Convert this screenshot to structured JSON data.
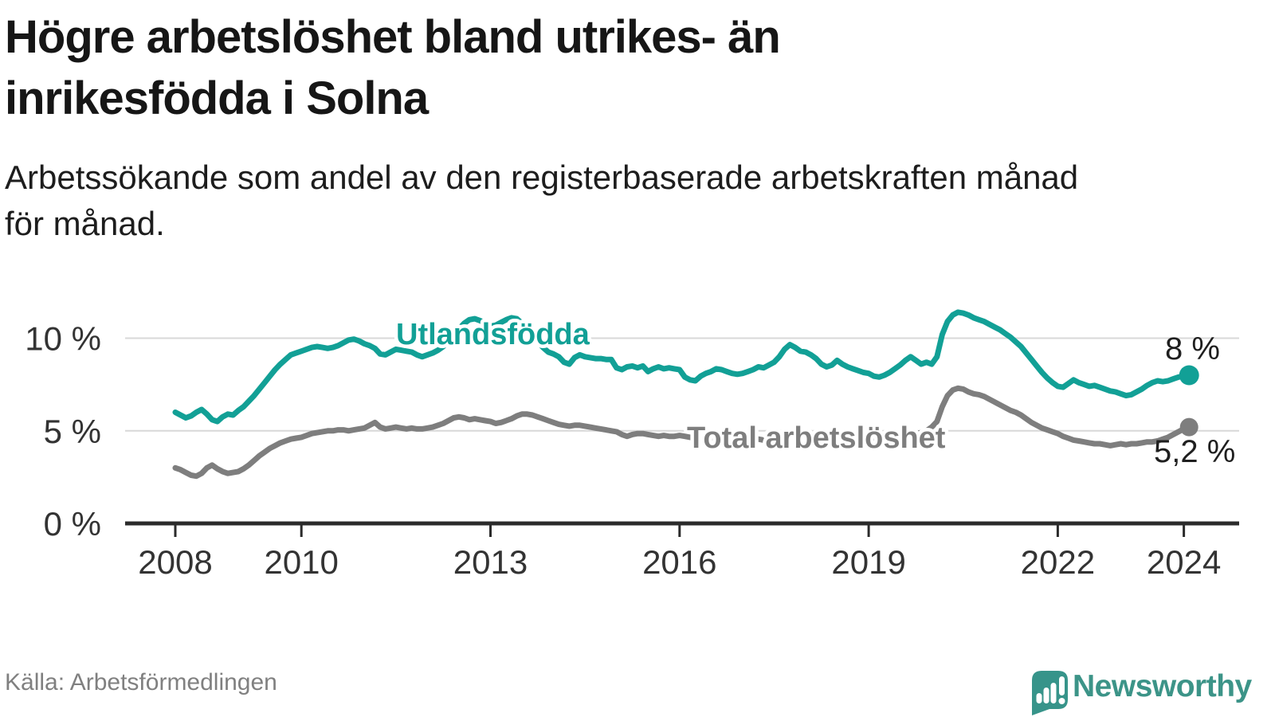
{
  "header": {
    "title_line1": "Högre arbetslöshet bland utrikes- än",
    "title_line2": "inrikesfödda i Solna",
    "subtitle_line1": "Arbetssökande som andel av den registerbaserade arbetskraften månad",
    "subtitle_line2": "för månad."
  },
  "footer": {
    "source": "Källa: Arbetsförmedlingen",
    "brand": "Newsworthy"
  },
  "colors": {
    "accent_teal": "#12a096",
    "series_gray": "#7e7e7e",
    "gridline": "#d8d8d8",
    "axis": "#2b2b2b",
    "tick_label": "#333333",
    "end_label": "#1f1f1f",
    "logo_teal": "#37948a"
  },
  "chart_data": {
    "type": "line",
    "title": "Högre arbetslöshet bland utrikes- än inrikesfödda i Solna",
    "subtitle": "Arbetssökande som andel av den registerbaserade arbetskraften månad för månad.",
    "xlabel": "",
    "ylabel": "",
    "x_unit": "month",
    "x_start_year": 2008,
    "x_end_label": "2024 (feb)",
    "ylim": [
      0,
      12
    ],
    "grid": "horizontal",
    "legend_position": "inline-labels",
    "x_tick_labels": [
      "2008",
      "2010",
      "2013",
      "2016",
      "2019",
      "2022",
      "2024"
    ],
    "x_tick_years": [
      2008,
      2010,
      2013,
      2016,
      2019,
      2022,
      2024
    ],
    "y_ticks": [
      {
        "value": 0,
        "label": "0 %"
      },
      {
        "value": 5,
        "label": "5 %"
      },
      {
        "value": 10,
        "label": "10 %"
      }
    ],
    "series": [
      {
        "name": "Utlandsfödda",
        "color": "#12a096",
        "end_label": "8 %",
        "end_value": 8.0,
        "values": [
          6.0,
          5.85,
          5.7,
          5.8,
          6.0,
          6.15,
          5.9,
          5.6,
          5.5,
          5.75,
          5.9,
          5.85,
          6.1,
          6.3,
          6.6,
          6.9,
          7.25,
          7.6,
          7.95,
          8.3,
          8.6,
          8.85,
          9.1,
          9.2,
          9.3,
          9.4,
          9.5,
          9.55,
          9.5,
          9.45,
          9.5,
          9.6,
          9.75,
          9.9,
          9.95,
          9.85,
          9.7,
          9.6,
          9.45,
          9.15,
          9.1,
          9.25,
          9.4,
          9.35,
          9.3,
          9.25,
          9.1,
          9.0,
          9.1,
          9.2,
          9.35,
          9.55,
          9.85,
          10.2,
          10.5,
          10.8,
          11.0,
          11.05,
          10.95,
          10.8,
          10.65,
          10.7,
          10.85,
          11.0,
          11.1,
          11.05,
          10.8,
          10.5,
          10.15,
          9.8,
          9.5,
          9.25,
          9.15,
          9.0,
          8.7,
          8.6,
          8.95,
          9.1,
          9.0,
          8.95,
          8.9,
          8.9,
          8.85,
          8.85,
          8.4,
          8.3,
          8.45,
          8.5,
          8.4,
          8.5,
          8.2,
          8.35,
          8.45,
          8.35,
          8.4,
          8.35,
          8.3,
          7.9,
          7.75,
          7.7,
          7.95,
          8.1,
          8.2,
          8.35,
          8.3,
          8.2,
          8.1,
          8.05,
          8.1,
          8.2,
          8.3,
          8.45,
          8.4,
          8.55,
          8.7,
          9.0,
          9.4,
          9.65,
          9.5,
          9.3,
          9.25,
          9.1,
          8.9,
          8.6,
          8.45,
          8.55,
          8.8,
          8.6,
          8.45,
          8.35,
          8.25,
          8.15,
          8.1,
          7.95,
          7.9,
          8.0,
          8.15,
          8.35,
          8.55,
          8.8,
          9.0,
          8.8,
          8.6,
          8.7,
          8.6,
          9.0,
          10.2,
          10.9,
          11.25,
          11.4,
          11.35,
          11.25,
          11.1,
          11.0,
          10.9,
          10.75,
          10.6,
          10.45,
          10.25,
          10.05,
          9.8,
          9.55,
          9.2,
          8.85,
          8.5,
          8.15,
          7.85,
          7.6,
          7.4,
          7.35,
          7.55,
          7.75,
          7.6,
          7.5,
          7.4,
          7.45,
          7.35,
          7.25,
          7.15,
          7.1,
          7.0,
          6.9,
          6.95,
          7.1,
          7.25,
          7.45,
          7.6,
          7.7,
          7.65,
          7.7,
          7.8,
          7.9,
          7.95,
          8.0
        ]
      },
      {
        "name": "Total arbetslöshet",
        "color": "#7e7e7e",
        "end_label": "5,2 %",
        "end_value": 5.2,
        "values": [
          3.0,
          2.9,
          2.75,
          2.6,
          2.55,
          2.7,
          3.0,
          3.15,
          2.95,
          2.8,
          2.7,
          2.75,
          2.8,
          2.95,
          3.15,
          3.4,
          3.65,
          3.85,
          4.05,
          4.2,
          4.35,
          4.45,
          4.55,
          4.6,
          4.65,
          4.75,
          4.85,
          4.9,
          4.95,
          5.0,
          5.0,
          5.05,
          5.05,
          5.0,
          5.05,
          5.1,
          5.15,
          5.3,
          5.45,
          5.2,
          5.1,
          5.15,
          5.2,
          5.15,
          5.1,
          5.15,
          5.1,
          5.1,
          5.15,
          5.2,
          5.3,
          5.4,
          5.55,
          5.7,
          5.75,
          5.7,
          5.6,
          5.65,
          5.6,
          5.55,
          5.5,
          5.4,
          5.45,
          5.55,
          5.65,
          5.8,
          5.9,
          5.9,
          5.85,
          5.75,
          5.65,
          5.55,
          5.45,
          5.35,
          5.3,
          5.25,
          5.3,
          5.3,
          5.25,
          5.2,
          5.15,
          5.1,
          5.05,
          5.0,
          4.95,
          4.8,
          4.7,
          4.8,
          4.85,
          4.85,
          4.8,
          4.75,
          4.7,
          4.75,
          4.7,
          4.7,
          4.75,
          4.7,
          4.65,
          4.6,
          4.6,
          4.55,
          4.6,
          4.6,
          4.65,
          4.6,
          4.55,
          4.5,
          4.5,
          4.45,
          4.5,
          4.55,
          4.5,
          4.55,
          4.6,
          4.65,
          4.7,
          4.75,
          4.8,
          4.8,
          4.75,
          4.7,
          4.65,
          4.6,
          4.55,
          4.55,
          4.6,
          4.65,
          4.6,
          4.55,
          4.5,
          4.5,
          4.5,
          4.45,
          4.4,
          4.45,
          4.5,
          4.55,
          4.6,
          4.7,
          4.8,
          4.85,
          4.9,
          5.0,
          5.2,
          5.5,
          6.3,
          6.9,
          7.2,
          7.3,
          7.25,
          7.1,
          7.0,
          6.95,
          6.85,
          6.7,
          6.55,
          6.4,
          6.25,
          6.1,
          6.0,
          5.85,
          5.65,
          5.45,
          5.3,
          5.15,
          5.05,
          4.95,
          4.85,
          4.7,
          4.6,
          4.5,
          4.45,
          4.4,
          4.35,
          4.3,
          4.3,
          4.25,
          4.2,
          4.25,
          4.3,
          4.25,
          4.3,
          4.3,
          4.35,
          4.4,
          4.4,
          4.45,
          4.55,
          4.65,
          4.8,
          4.95,
          5.1,
          5.2
        ]
      }
    ]
  }
}
